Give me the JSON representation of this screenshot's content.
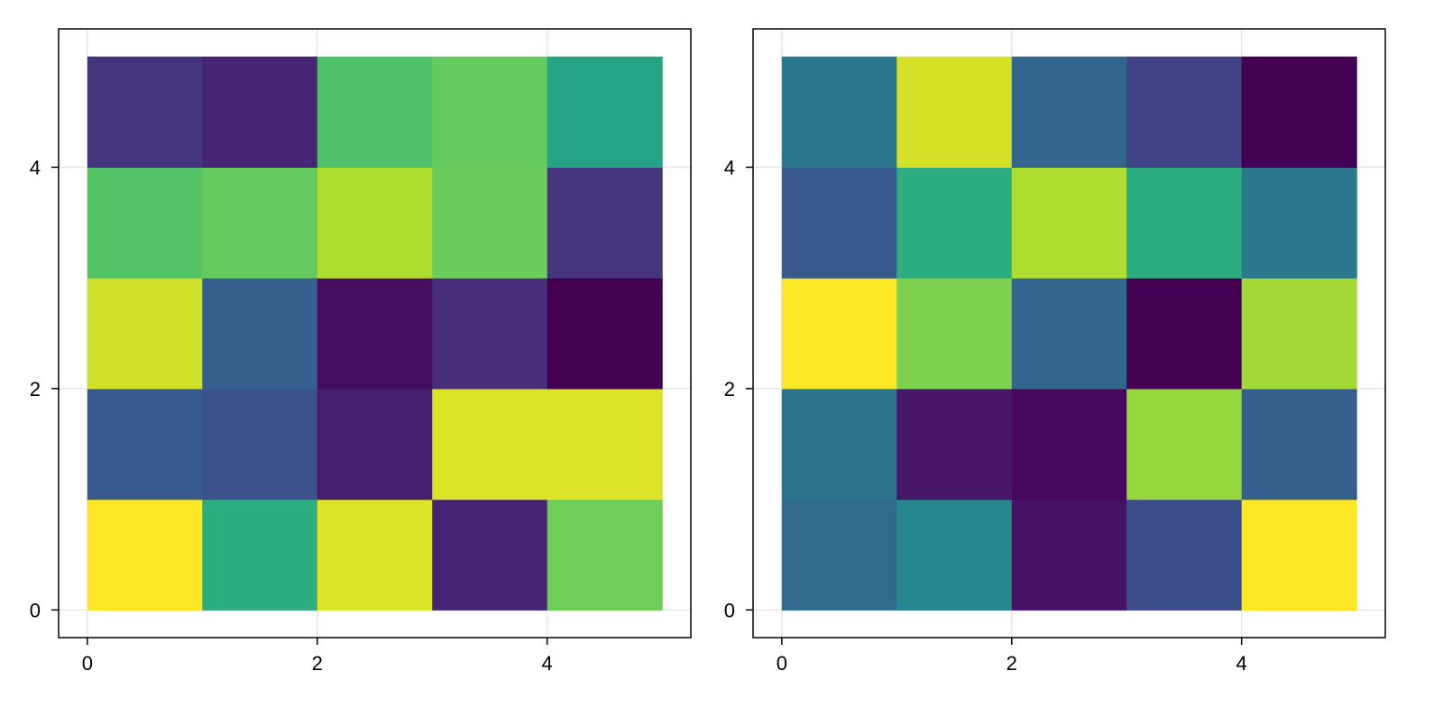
{
  "chart_data": [
    {
      "type": "heatmap",
      "title": "",
      "xlabel": "",
      "ylabel": "",
      "x_edges": [
        0,
        1,
        2,
        3,
        4,
        5
      ],
      "y_edges": [
        0,
        1,
        2,
        3,
        4,
        5
      ],
      "xlim": [
        -0.25,
        5.25
      ],
      "ylim": [
        -0.25,
        5.25
      ],
      "xticks": [
        0,
        2,
        4
      ],
      "yticks": [
        0,
        2,
        4
      ],
      "xtick_labels": [
        "0",
        "2",
        "4"
      ],
      "ytick_labels": [
        "0",
        "2",
        "4"
      ],
      "grid": true,
      "colormap": "viridis",
      "value_range": [
        0,
        1
      ],
      "values": [
        [
          1.0,
          0.62,
          0.95,
          0.1,
          0.78
        ],
        [
          0.28,
          0.25,
          0.08,
          0.95,
          0.95
        ],
        [
          0.93,
          0.3,
          0.04,
          0.13,
          0.0
        ],
        [
          0.73,
          0.76,
          0.88,
          0.77,
          0.15
        ],
        [
          0.15,
          0.1,
          0.72,
          0.76,
          0.58
        ]
      ]
    },
    {
      "type": "heatmap",
      "title": "",
      "xlabel": "",
      "ylabel": "",
      "x_edges": [
        0,
        1,
        2,
        3,
        4,
        5
      ],
      "y_edges": [
        0,
        1,
        2,
        3,
        4,
        5
      ],
      "xlim": [
        -0.25,
        5.25
      ],
      "ylim": [
        -0.25,
        5.25
      ],
      "xticks": [
        0,
        2,
        4
      ],
      "yticks": [
        0,
        2,
        4
      ],
      "xtick_labels": [
        "0",
        "2",
        "4"
      ],
      "ytick_labels": [
        "0",
        "2",
        "4"
      ],
      "grid": true,
      "colormap": "viridis",
      "value_range": [
        0,
        1
      ],
      "values": [
        [
          0.34,
          0.46,
          0.05,
          0.24,
          1.0
        ],
        [
          0.38,
          0.06,
          0.02,
          0.84,
          0.3
        ],
        [
          1.0,
          0.8,
          0.33,
          0.0,
          0.86
        ],
        [
          0.28,
          0.62,
          0.88,
          0.62,
          0.4
        ],
        [
          0.4,
          0.94,
          0.33,
          0.2,
          0.0
        ]
      ]
    }
  ]
}
